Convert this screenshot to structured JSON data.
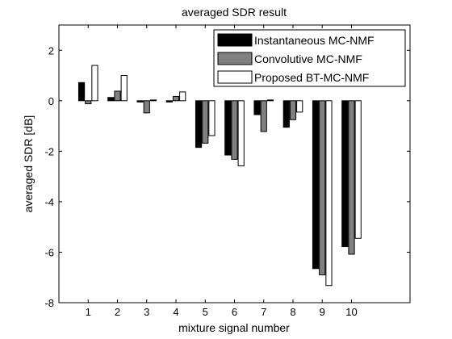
{
  "chart_data": {
    "type": "bar",
    "title": "averaged SDR result",
    "xlabel": "mixture signal number",
    "ylabel": "averaged SDR [dB]",
    "categories": [
      "1",
      "2",
      "3",
      "4",
      "5",
      "6",
      "7",
      "8",
      "9",
      "10"
    ],
    "xlim": [
      0,
      12
    ],
    "ylim": [
      -8,
      3
    ],
    "yticks": [
      -8,
      -6,
      -4,
      -2,
      0,
      2
    ],
    "grid": false,
    "legend_position": "top-right",
    "series": [
      {
        "name": "Instantaneous MC-NMF",
        "color": "#000000",
        "values": [
          0.72,
          0.13,
          -0.05,
          -0.05,
          -1.85,
          -2.15,
          -0.55,
          -1.05,
          -6.65,
          -5.78
        ]
      },
      {
        "name": "Convolutive MC-NMF",
        "color": "#808080",
        "values": [
          -0.12,
          0.38,
          -0.48,
          0.17,
          -1.68,
          -2.32,
          -1.22,
          -0.75,
          -6.9,
          -6.08
        ]
      },
      {
        "name": "Proposed BT-MC-NMF",
        "color": "#ffffff",
        "values": [
          1.4,
          1.0,
          0.03,
          0.35,
          -1.38,
          -2.58,
          0.03,
          -0.45,
          -7.32,
          -5.45
        ]
      }
    ]
  }
}
